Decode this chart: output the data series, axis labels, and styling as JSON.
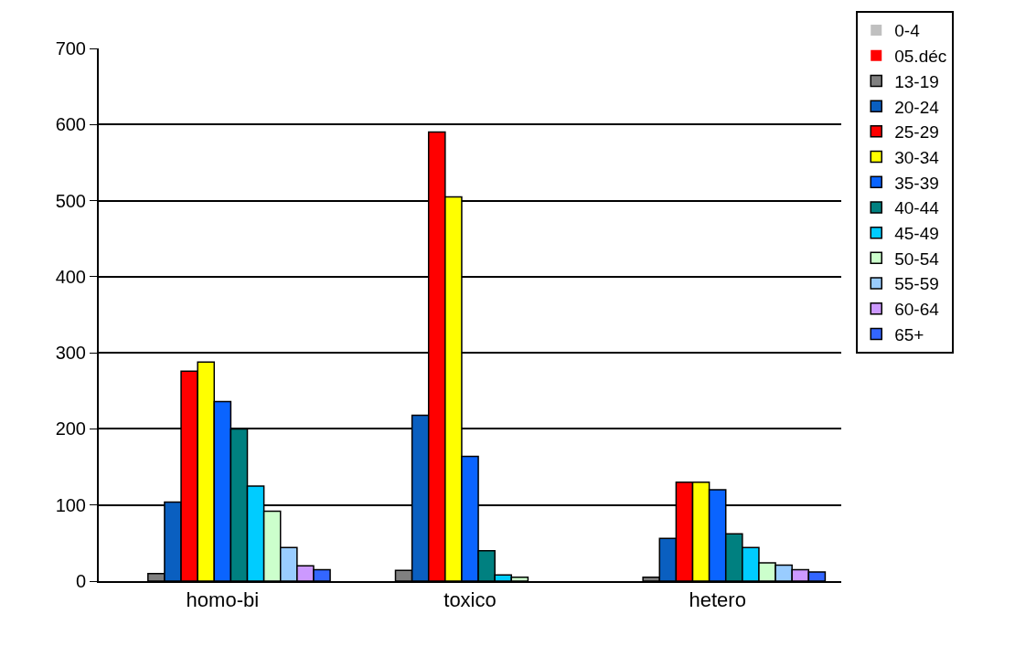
{
  "chart_data": {
    "type": "bar",
    "categories": [
      "homo-bi",
      "toxico",
      "hetero"
    ],
    "series": [
      {
        "name": "0-4",
        "color": "#c0c0c0",
        "values": [
          0,
          0,
          0
        ]
      },
      {
        "name": "05.déc",
        "color": "#ff0000",
        "values": [
          0,
          0,
          0
        ]
      },
      {
        "name": "13-19",
        "color": "#808080",
        "values": [
          10,
          14,
          5
        ]
      },
      {
        "name": "20-24",
        "color": "#0a5fc0",
        "values": [
          104,
          218,
          56
        ]
      },
      {
        "name": "25-29",
        "color": "#ff0000",
        "values": [
          276,
          590,
          130
        ]
      },
      {
        "name": "30-34",
        "color": "#ffff00",
        "values": [
          288,
          505,
          130
        ]
      },
      {
        "name": "35-39",
        "color": "#0a64ff",
        "values": [
          236,
          164,
          120
        ]
      },
      {
        "name": "40-44",
        "color": "#008080",
        "values": [
          200,
          40,
          62
        ]
      },
      {
        "name": "45-49",
        "color": "#00ccff",
        "values": [
          125,
          8,
          44
        ]
      },
      {
        "name": "50-54",
        "color": "#ccffcc",
        "values": [
          92,
          5,
          24
        ]
      },
      {
        "name": "55-59",
        "color": "#99ccff",
        "values": [
          44,
          0,
          21
        ]
      },
      {
        "name": "60-64",
        "color": "#cc99ff",
        "values": [
          20,
          0,
          15
        ]
      },
      {
        "name": "65+",
        "color": "#3366ff",
        "values": [
          15,
          0,
          12
        ]
      }
    ],
    "ylim": [
      0,
      700
    ],
    "yticks": [
      0,
      100,
      200,
      300,
      400,
      500,
      600,
      700
    ],
    "grid": "y",
    "legend": "right"
  }
}
